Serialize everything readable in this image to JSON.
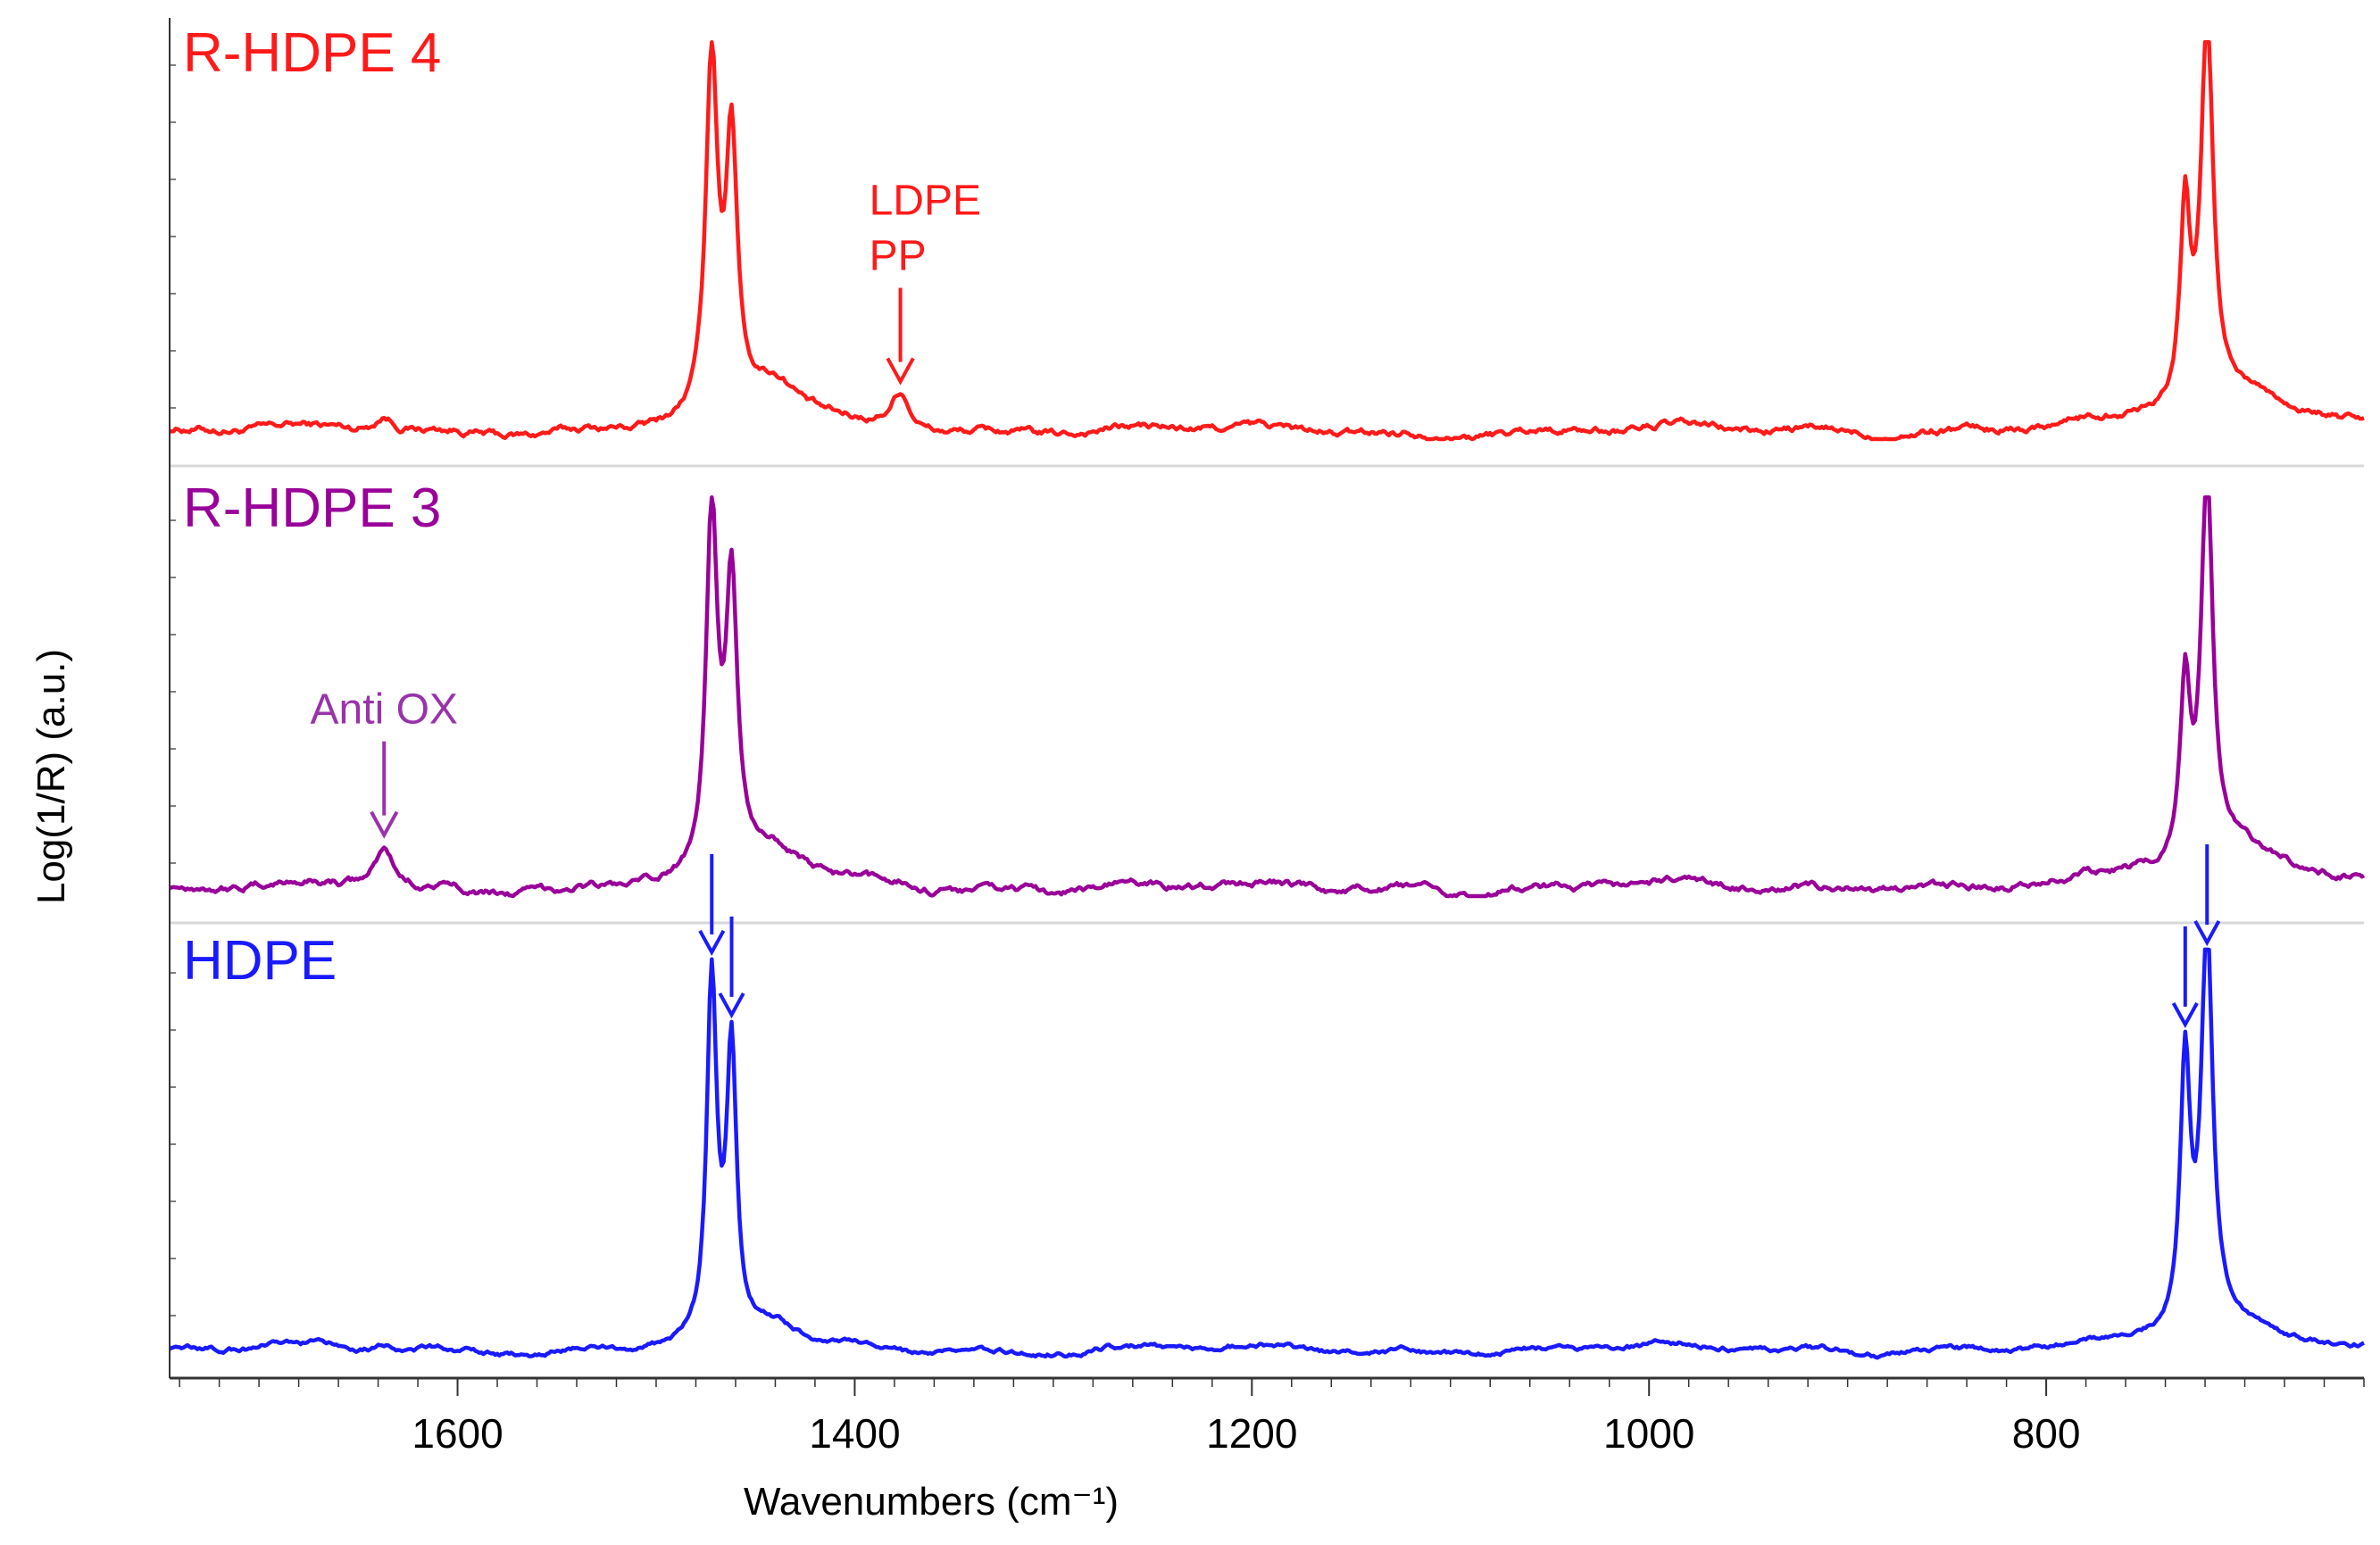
{
  "chart_data": {
    "type": "line",
    "title": "",
    "xlabel": "Wavenumbers (cm⁻¹)",
    "ylabel": "Log(1/R) (a.u.)",
    "xlim": [
      1745,
      640
    ],
    "x_reversed": true,
    "x_ticks": [
      1600,
      1400,
      1200,
      1000,
      800
    ],
    "ylim": [
      0,
      1
    ],
    "grid": false,
    "stacked_panels": true,
    "series": [
      {
        "name": "R-HDPE 4",
        "label": "R-HDPE 4",
        "color": "#ff1a1a",
        "baseline": 0.02,
        "noise": 0.012,
        "peaks": [
          {
            "center": 1637,
            "height": 0.04,
            "width": 6
          },
          {
            "center": 1472,
            "height": 0.9,
            "width": 3.5
          },
          {
            "center": 1462,
            "height": 0.68,
            "width": 3.5
          },
          {
            "center": 1440,
            "height": 0.12,
            "width": 18
          },
          {
            "center": 1377,
            "height": 0.1,
            "width": 6
          },
          {
            "center": 730,
            "height": 0.5,
            "width": 3
          },
          {
            "center": 719,
            "height": 0.98,
            "width": 3.5
          },
          {
            "center": 700,
            "height": 0.1,
            "width": 40
          }
        ]
      },
      {
        "name": "R-HDPE 3",
        "label": "R-HDPE 3",
        "color": "#990099",
        "baseline": 0.02,
        "noise": 0.012,
        "peaks": [
          {
            "center": 1637,
            "height": 0.1,
            "width": 6
          },
          {
            "center": 1472,
            "height": 0.9,
            "width": 3.5
          },
          {
            "center": 1462,
            "height": 0.72,
            "width": 3.5
          },
          {
            "center": 1440,
            "height": 0.1,
            "width": 16
          },
          {
            "center": 1377,
            "height": 0.02,
            "width": 8
          },
          {
            "center": 730,
            "height": 0.45,
            "width": 3
          },
          {
            "center": 719,
            "height": 0.98,
            "width": 3.5
          },
          {
            "center": 700,
            "height": 0.1,
            "width": 40
          }
        ]
      },
      {
        "name": "HDPE",
        "label": "HDPE",
        "color": "#1a1aff",
        "baseline": 0.03,
        "noise": 0.008,
        "peaks": [
          {
            "center": 1637,
            "height": 0.02,
            "width": 6
          },
          {
            "center": 1472,
            "height": 0.88,
            "width": 3
          },
          {
            "center": 1462,
            "height": 0.7,
            "width": 3
          },
          {
            "center": 1440,
            "height": 0.06,
            "width": 14
          },
          {
            "center": 730,
            "height": 0.66,
            "width": 3
          },
          {
            "center": 719,
            "height": 0.97,
            "width": 3.5
          },
          {
            "center": 700,
            "height": 0.06,
            "width": 35
          }
        ]
      }
    ],
    "annotations": [
      {
        "lines": [
          "LDPE",
          "PP"
        ],
        "series": "R-HDPE 4",
        "x": 1377,
        "color": "#ff1a1a"
      },
      {
        "lines": [
          "Anti OX"
        ],
        "series": "R-HDPE 3",
        "x": 1637,
        "color": "#9933aa"
      }
    ],
    "marker_arrows": [
      {
        "series": "HDPE",
        "x": 1472,
        "color": "#1a1aff"
      },
      {
        "series": "HDPE",
        "x": 1462,
        "color": "#1a1aff"
      },
      {
        "series": "HDPE",
        "x": 730,
        "color": "#1a1aff"
      },
      {
        "series": "HDPE",
        "x": 719,
        "color": "#1a1aff"
      }
    ]
  }
}
